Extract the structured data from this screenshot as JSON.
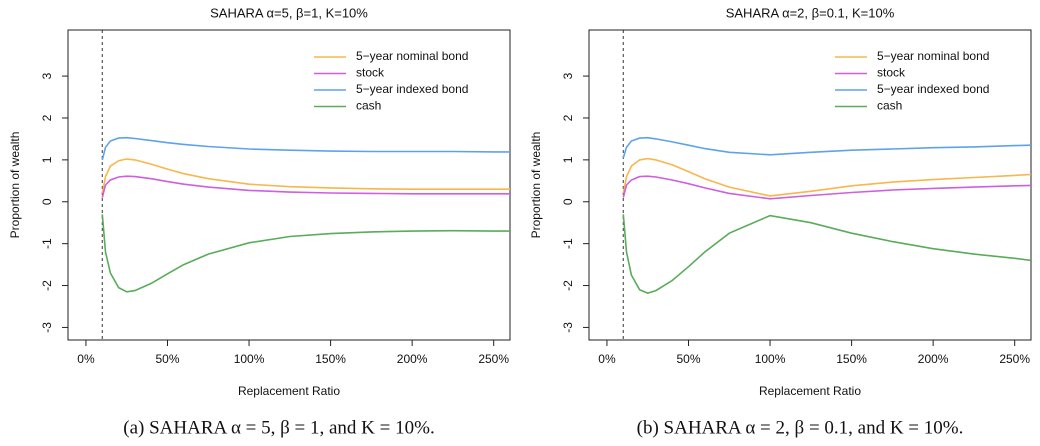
{
  "chart_data": [
    {
      "type": "line",
      "title": "SAHARA α=5, β=1, K=10%",
      "caption": "(a) SAHARA α = 5, β = 1, and K = 10%.",
      "xlabel": "Replacement Ratio",
      "ylabel": "Proportion of wealth",
      "legend": "top-right",
      "vline": 10,
      "xlim": [
        -11,
        260
      ],
      "ylim": [
        -3.3,
        4.1
      ],
      "xticks": [
        {
          "value": 0,
          "label": "0%"
        },
        {
          "value": 50,
          "label": "50%"
        },
        {
          "value": 100,
          "label": "100%"
        },
        {
          "value": 150,
          "label": "150%"
        },
        {
          "value": 200,
          "label": "200%"
        },
        {
          "value": 250,
          "label": "250%"
        }
      ],
      "yticks": [
        -3,
        -2,
        -1,
        0,
        1,
        2,
        3
      ],
      "x": [
        10,
        12,
        15,
        20,
        25,
        30,
        40,
        50,
        60,
        75,
        100,
        125,
        150,
        175,
        200,
        225,
        250,
        260
      ],
      "series": [
        {
          "name": "5−year nominal bond",
          "color": "#f8b64c",
          "values": [
            0.2,
            0.6,
            0.85,
            0.98,
            1.02,
            1.0,
            0.9,
            0.78,
            0.67,
            0.55,
            0.42,
            0.36,
            0.33,
            0.31,
            0.3,
            0.3,
            0.3,
            0.3
          ]
        },
        {
          "name": "stock",
          "color": "#d05ee0",
          "values": [
            0.1,
            0.4,
            0.52,
            0.59,
            0.61,
            0.6,
            0.55,
            0.48,
            0.42,
            0.35,
            0.27,
            0.23,
            0.21,
            0.2,
            0.19,
            0.19,
            0.19,
            0.19
          ]
        },
        {
          "name": "5−year indexed bond",
          "color": "#5ea2ee",
          "values": [
            1.0,
            1.3,
            1.45,
            1.52,
            1.53,
            1.51,
            1.46,
            1.41,
            1.37,
            1.32,
            1.26,
            1.23,
            1.21,
            1.2,
            1.2,
            1.2,
            1.19,
            1.19
          ]
        },
        {
          "name": "cash",
          "color": "#5aab5a",
          "values": [
            -0.3,
            -1.2,
            -1.7,
            -2.05,
            -2.15,
            -2.12,
            -1.95,
            -1.72,
            -1.5,
            -1.25,
            -0.98,
            -0.83,
            -0.76,
            -0.72,
            -0.7,
            -0.69,
            -0.7,
            -0.7
          ]
        }
      ]
    },
    {
      "type": "line",
      "title": "SAHARA α=2, β=0.1, K=10%",
      "caption": "(b) SAHARA α = 2, β = 0.1, and K = 10%.",
      "xlabel": "Replacement Ratio",
      "ylabel": "Proportion of wealth",
      "legend": "top-right",
      "vline": 10,
      "xlim": [
        -11,
        260
      ],
      "ylim": [
        -3.3,
        4.1
      ],
      "xticks": [
        {
          "value": 0,
          "label": "0%"
        },
        {
          "value": 50,
          "label": "50%"
        },
        {
          "value": 100,
          "label": "100%"
        },
        {
          "value": 150,
          "label": "150%"
        },
        {
          "value": 200,
          "label": "200%"
        },
        {
          "value": 250,
          "label": "250%"
        }
      ],
      "yticks": [
        -3,
        -2,
        -1,
        0,
        1,
        2,
        3
      ],
      "x": [
        10,
        12,
        15,
        20,
        25,
        30,
        40,
        50,
        60,
        75,
        100,
        125,
        150,
        175,
        200,
        225,
        250,
        260
      ],
      "series": [
        {
          "name": "5−year nominal bond",
          "color": "#f8b64c",
          "values": [
            0.2,
            0.6,
            0.85,
            1.0,
            1.03,
            1.0,
            0.88,
            0.72,
            0.55,
            0.35,
            0.14,
            0.25,
            0.38,
            0.47,
            0.53,
            0.58,
            0.63,
            0.65
          ]
        },
        {
          "name": "stock",
          "color": "#d05ee0",
          "values": [
            0.1,
            0.4,
            0.52,
            0.6,
            0.61,
            0.59,
            0.52,
            0.43,
            0.33,
            0.2,
            0.07,
            0.15,
            0.22,
            0.28,
            0.32,
            0.35,
            0.38,
            0.39
          ]
        },
        {
          "name": "5−year indexed bond",
          "color": "#5ea2ee",
          "values": [
            1.05,
            1.3,
            1.45,
            1.52,
            1.53,
            1.5,
            1.43,
            1.35,
            1.27,
            1.18,
            1.12,
            1.18,
            1.23,
            1.26,
            1.29,
            1.31,
            1.34,
            1.35
          ]
        },
        {
          "name": "cash",
          "color": "#5aab5a",
          "values": [
            -0.3,
            -1.2,
            -1.75,
            -2.1,
            -2.18,
            -2.12,
            -1.88,
            -1.55,
            -1.2,
            -0.75,
            -0.33,
            -0.5,
            -0.75,
            -0.95,
            -1.12,
            -1.25,
            -1.35,
            -1.4
          ]
        }
      ]
    }
  ]
}
